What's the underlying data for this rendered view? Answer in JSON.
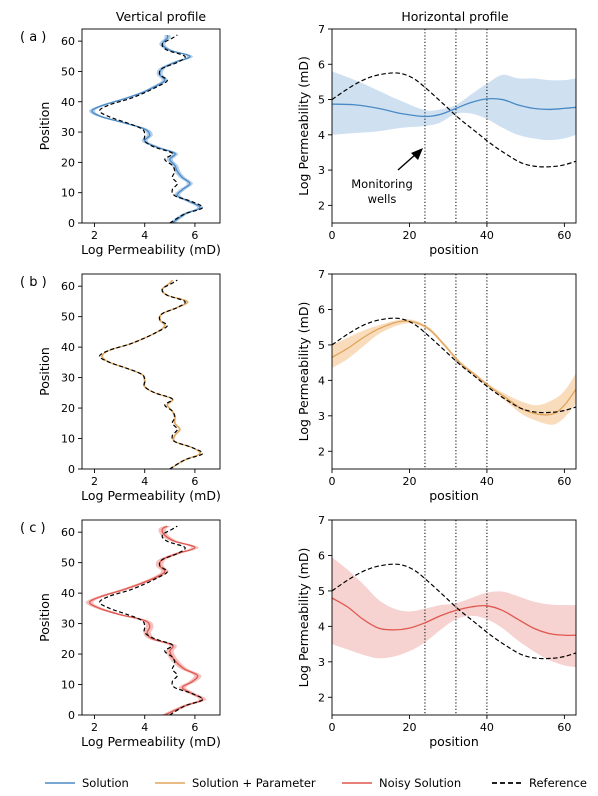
{
  "titles": {
    "left": "Vertical profile",
    "right": "Horizontal profile"
  },
  "legend": {
    "items": [
      {
        "label": "Solution",
        "color": "#4a8ac4",
        "style": "solid"
      },
      {
        "label": "Solution + Parameter",
        "color": "#e0a55b",
        "style": "solid"
      },
      {
        "label": "Noisy Solution",
        "color": "#e0574f",
        "style": "solid"
      },
      {
        "label": "Reference",
        "color": "#000000",
        "style": "dashed"
      }
    ]
  },
  "annotation": {
    "line1": "Monitoring",
    "line2": "wells"
  },
  "chart_data": [
    {
      "id": "a-vertical",
      "panel_label": "( a )",
      "type": "line",
      "xlabel": "Log Permeability (mD)",
      "ylabel": "Position",
      "xlim": [
        1.5,
        7.0
      ],
      "ylim": [
        0,
        64
      ],
      "xticks": [
        2,
        4,
        6
      ],
      "yticks": [
        0,
        10,
        20,
        30,
        40,
        50,
        60
      ],
      "band_color": "#a9c9e8",
      "line_color": "#4a8ac4",
      "band_halfwidth": 0.12,
      "series": [
        {
          "name": "Solution",
          "y": [
            0,
            3,
            5,
            7,
            9,
            11,
            13,
            15,
            17,
            19,
            21,
            23,
            25,
            27,
            29,
            31,
            33,
            35,
            37,
            39,
            41,
            43,
            45,
            47,
            49,
            51,
            53,
            55,
            57,
            59,
            61,
            62
          ],
          "x": [
            5.1,
            5.6,
            6.2,
            5.8,
            5.3,
            5.5,
            5.8,
            5.5,
            5.3,
            5.2,
            5.0,
            5.2,
            4.5,
            4.0,
            4.2,
            4.0,
            3.2,
            2.3,
            1.9,
            2.4,
            3.2,
            3.9,
            4.4,
            4.8,
            4.6,
            4.7,
            5.2,
            5.8,
            5.0,
            4.7,
            4.9,
            4.9
          ]
        },
        {
          "name": "Reference",
          "y": [
            0,
            3,
            5,
            7,
            9,
            11,
            13,
            15,
            17,
            19,
            21,
            23,
            25,
            27,
            29,
            31,
            33,
            35,
            37,
            39,
            41,
            43,
            45,
            47,
            49,
            51,
            53,
            55,
            57,
            59,
            61,
            62
          ],
          "x": [
            5.0,
            5.6,
            6.3,
            5.9,
            5.2,
            5.1,
            5.3,
            5.1,
            5.2,
            5.1,
            4.8,
            5.1,
            4.4,
            4.0,
            4.0,
            3.9,
            3.3,
            2.6,
            2.2,
            2.6,
            3.4,
            4.0,
            4.5,
            4.9,
            4.6,
            4.7,
            5.3,
            5.6,
            4.9,
            4.7,
            5.1,
            5.3
          ]
        }
      ]
    },
    {
      "id": "a-horizontal",
      "type": "line",
      "xlabel": "position",
      "ylabel": "Log Permeability (mD)",
      "xlim": [
        0,
        63
      ],
      "ylim": [
        1.5,
        7.0
      ],
      "xticks": [
        0,
        20,
        40,
        60
      ],
      "yticks": [
        2,
        3,
        4,
        5,
        6,
        7
      ],
      "wells": [
        24,
        32,
        40
      ],
      "band_color": "#cfe0f1",
      "line_color": "#4a8ac4",
      "series": [
        {
          "name": "Solution",
          "x": [
            0,
            6,
            12,
            18,
            24,
            28,
            32,
            36,
            40,
            44,
            48,
            52,
            56,
            60,
            63
          ],
          "y": [
            4.87,
            4.85,
            4.75,
            4.6,
            4.52,
            4.58,
            4.75,
            4.92,
            5.02,
            5.0,
            4.85,
            4.75,
            4.72,
            4.75,
            4.78
          ]
        },
        {
          "name": "band_upper",
          "x": [
            0,
            6,
            12,
            18,
            24,
            28,
            32,
            36,
            40,
            44,
            48,
            52,
            56,
            60,
            63
          ],
          "y": [
            5.8,
            5.55,
            5.25,
            4.95,
            4.7,
            4.72,
            4.85,
            5.15,
            5.45,
            5.7,
            5.6,
            5.6,
            5.55,
            5.55,
            5.6
          ]
        },
        {
          "name": "band_lower",
          "x": [
            0,
            6,
            12,
            18,
            24,
            28,
            32,
            36,
            40,
            44,
            48,
            52,
            56,
            60,
            63
          ],
          "y": [
            4.0,
            4.05,
            4.1,
            4.2,
            4.25,
            4.35,
            4.6,
            4.6,
            4.45,
            4.2,
            4.0,
            3.9,
            3.85,
            3.9,
            4.0
          ]
        },
        {
          "name": "Reference",
          "x": [
            0,
            4,
            8,
            12,
            17,
            21,
            25,
            29,
            33,
            37,
            41,
            45,
            49,
            53,
            57,
            60,
            63
          ],
          "y": [
            5.0,
            5.3,
            5.55,
            5.7,
            5.75,
            5.6,
            5.25,
            4.85,
            4.45,
            4.1,
            3.75,
            3.45,
            3.2,
            3.1,
            3.1,
            3.15,
            3.25
          ]
        }
      ]
    },
    {
      "id": "b-vertical",
      "panel_label": "( b )",
      "type": "line",
      "xlabel": "Log Permeability (mD)",
      "ylabel": "Position",
      "xlim": [
        1.5,
        7.0
      ],
      "ylim": [
        0,
        64
      ],
      "xticks": [
        2,
        4,
        6
      ],
      "yticks": [
        0,
        10,
        20,
        30,
        40,
        50,
        60
      ],
      "band_color": "#f3d3ad",
      "line_color": "#e0a55b",
      "band_halfwidth": 0.05,
      "series": [
        {
          "name": "Solution + Parameter",
          "y": [
            0,
            3,
            5,
            7,
            9,
            11,
            13,
            15,
            17,
            19,
            21,
            23,
            25,
            27,
            29,
            31,
            33,
            35,
            37,
            39,
            41,
            43,
            45,
            47,
            49,
            51,
            53,
            55,
            57,
            59,
            61,
            62
          ],
          "x": [
            5.0,
            5.6,
            6.2,
            5.9,
            5.2,
            5.2,
            5.4,
            5.2,
            5.2,
            5.1,
            4.9,
            5.1,
            4.4,
            4.0,
            4.0,
            3.9,
            3.3,
            2.6,
            2.3,
            2.6,
            3.4,
            4.0,
            4.5,
            4.8,
            4.6,
            4.7,
            5.3,
            5.7,
            4.9,
            4.7,
            5.0,
            5.1
          ]
        },
        {
          "name": "Reference",
          "y": [
            0,
            3,
            5,
            7,
            9,
            11,
            13,
            15,
            17,
            19,
            21,
            23,
            25,
            27,
            29,
            31,
            33,
            35,
            37,
            39,
            41,
            43,
            45,
            47,
            49,
            51,
            53,
            55,
            57,
            59,
            61,
            62
          ],
          "x": [
            5.0,
            5.6,
            6.3,
            5.9,
            5.2,
            5.1,
            5.3,
            5.1,
            5.2,
            5.1,
            4.8,
            5.1,
            4.4,
            4.0,
            4.0,
            3.9,
            3.3,
            2.6,
            2.2,
            2.6,
            3.4,
            4.0,
            4.5,
            4.9,
            4.6,
            4.7,
            5.3,
            5.6,
            4.9,
            4.7,
            5.1,
            5.3
          ]
        }
      ]
    },
    {
      "id": "b-horizontal",
      "type": "line",
      "xlabel": "position",
      "ylabel": "Log Permeability (mD)",
      "xlim": [
        0,
        63
      ],
      "ylim": [
        1.5,
        7.0
      ],
      "xticks": [
        0,
        20,
        40,
        60
      ],
      "yticks": [
        2,
        3,
        4,
        5,
        6,
        7
      ],
      "wells": [
        24,
        32,
        40
      ],
      "band_color": "#f8dcbc",
      "line_color": "#e0a55b",
      "series": [
        {
          "name": "Solution + Parameter",
          "x": [
            0,
            4,
            8,
            12,
            17,
            21,
            25,
            29,
            33,
            37,
            41,
            45,
            49,
            53,
            57,
            60,
            63
          ],
          "y": [
            4.65,
            4.9,
            5.2,
            5.45,
            5.65,
            5.65,
            5.45,
            5.0,
            4.5,
            4.15,
            3.8,
            3.5,
            3.2,
            3.05,
            3.05,
            3.3,
            3.75
          ]
        },
        {
          "name": "band_upper",
          "x": [
            0,
            4,
            8,
            12,
            17,
            21,
            25,
            29,
            33,
            37,
            41,
            45,
            49,
            53,
            57,
            60,
            63
          ],
          "y": [
            5.0,
            5.2,
            5.4,
            5.55,
            5.7,
            5.7,
            5.5,
            5.05,
            4.55,
            4.2,
            3.85,
            3.6,
            3.4,
            3.3,
            3.45,
            3.7,
            4.2
          ]
        },
        {
          "name": "band_lower",
          "x": [
            0,
            4,
            8,
            12,
            17,
            21,
            25,
            29,
            33,
            37,
            41,
            45,
            49,
            53,
            57,
            60,
            63
          ],
          "y": [
            4.35,
            4.6,
            4.95,
            5.3,
            5.55,
            5.6,
            5.4,
            4.95,
            4.45,
            4.1,
            3.75,
            3.4,
            3.05,
            2.85,
            2.75,
            2.95,
            3.35
          ]
        },
        {
          "name": "Reference",
          "x": [
            0,
            4,
            8,
            12,
            17,
            21,
            25,
            29,
            33,
            37,
            41,
            45,
            49,
            53,
            57,
            60,
            63
          ],
          "y": [
            5.0,
            5.3,
            5.55,
            5.7,
            5.75,
            5.6,
            5.25,
            4.85,
            4.45,
            4.1,
            3.75,
            3.45,
            3.2,
            3.1,
            3.1,
            3.15,
            3.25
          ]
        }
      ]
    },
    {
      "id": "c-vertical",
      "panel_label": "( c )",
      "type": "line",
      "xlabel": "Log Permeability (mD)",
      "ylabel": "Position",
      "xlim": [
        1.5,
        7.0
      ],
      "ylim": [
        0,
        64
      ],
      "xticks": [
        2,
        4,
        6
      ],
      "yticks": [
        0,
        10,
        20,
        30,
        40,
        50,
        60
      ],
      "band_color": "#f4b9b6",
      "line_color": "#e0574f",
      "band_halfwidth": 0.15,
      "series": [
        {
          "name": "Noisy Solution",
          "y": [
            0,
            3,
            5,
            7,
            9,
            11,
            13,
            15,
            17,
            19,
            21,
            23,
            25,
            27,
            29,
            31,
            33,
            35,
            37,
            39,
            41,
            43,
            45,
            47,
            49,
            51,
            53,
            55,
            57,
            59,
            61,
            62
          ],
          "x": [
            4.8,
            5.6,
            6.3,
            5.9,
            5.5,
            5.9,
            6.1,
            5.6,
            5.3,
            5.1,
            5.0,
            5.1,
            4.3,
            4.1,
            4.2,
            4.0,
            3.0,
            2.2,
            1.8,
            2.3,
            3.1,
            3.8,
            4.4,
            4.8,
            4.6,
            4.7,
            5.3,
            6.0,
            5.2,
            4.8,
            4.7,
            4.9
          ]
        },
        {
          "name": "Reference",
          "y": [
            0,
            3,
            5,
            7,
            9,
            11,
            13,
            15,
            17,
            19,
            21,
            23,
            25,
            27,
            29,
            31,
            33,
            35,
            37,
            39,
            41,
            43,
            45,
            47,
            49,
            51,
            53,
            55,
            57,
            59,
            61,
            62
          ],
          "x": [
            5.0,
            5.6,
            6.3,
            5.9,
            5.2,
            5.1,
            5.3,
            5.1,
            5.2,
            5.1,
            4.8,
            5.1,
            4.4,
            4.0,
            4.0,
            3.9,
            3.3,
            2.6,
            2.2,
            2.6,
            3.4,
            4.0,
            4.5,
            4.9,
            4.6,
            4.7,
            5.3,
            5.6,
            4.9,
            4.7,
            5.1,
            5.3
          ]
        }
      ]
    },
    {
      "id": "c-horizontal",
      "type": "line",
      "xlabel": "position",
      "ylabel": "Log Permeability (mD)",
      "xlim": [
        0,
        63
      ],
      "ylim": [
        1.5,
        7.0
      ],
      "xticks": [
        0,
        20,
        40,
        60
      ],
      "yticks": [
        2,
        3,
        4,
        5,
        6,
        7
      ],
      "wells": [
        24,
        32,
        40
      ],
      "band_color": "#f6d2d0",
      "line_color": "#e0574f",
      "series": [
        {
          "name": "Noisy Solution",
          "x": [
            0,
            4,
            8,
            12,
            16,
            20,
            24,
            28,
            32,
            36,
            40,
            44,
            48,
            52,
            56,
            60,
            63
          ],
          "y": [
            4.8,
            4.55,
            4.2,
            3.95,
            3.9,
            3.95,
            4.1,
            4.3,
            4.45,
            4.55,
            4.58,
            4.45,
            4.2,
            3.95,
            3.8,
            3.75,
            3.75
          ]
        },
        {
          "name": "band_upper",
          "x": [
            0,
            4,
            8,
            12,
            16,
            20,
            24,
            28,
            32,
            36,
            40,
            44,
            48,
            52,
            56,
            60,
            63
          ],
          "y": [
            5.95,
            5.6,
            5.2,
            4.75,
            4.5,
            4.42,
            4.5,
            4.6,
            4.65,
            4.8,
            4.95,
            4.98,
            4.85,
            4.7,
            4.62,
            4.6,
            4.6
          ]
        },
        {
          "name": "band_lower",
          "x": [
            0,
            4,
            8,
            12,
            16,
            20,
            24,
            28,
            32,
            36,
            40,
            44,
            48,
            52,
            56,
            60,
            63
          ],
          "y": [
            3.5,
            3.35,
            3.2,
            3.1,
            3.15,
            3.3,
            3.55,
            3.9,
            4.2,
            4.3,
            4.2,
            3.95,
            3.6,
            3.3,
            3.05,
            2.9,
            2.85
          ]
        },
        {
          "name": "Reference",
          "x": [
            0,
            4,
            8,
            12,
            17,
            21,
            25,
            29,
            33,
            37,
            41,
            45,
            49,
            53,
            57,
            60,
            63
          ],
          "y": [
            5.0,
            5.3,
            5.55,
            5.7,
            5.75,
            5.6,
            5.25,
            4.85,
            4.45,
            4.1,
            3.75,
            3.45,
            3.2,
            3.1,
            3.1,
            3.15,
            3.25
          ]
        }
      ]
    }
  ]
}
